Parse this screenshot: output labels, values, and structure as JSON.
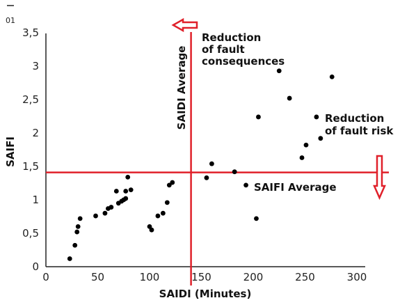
{
  "figure_number": "01",
  "chart_data": {
    "type": "scatter",
    "title": "",
    "xlabel": "SAIDI (Minutes)",
    "ylabel": "SAIFI",
    "xlim": [
      0,
      300
    ],
    "ylim": [
      0,
      3.5
    ],
    "x_ticks": [
      "0",
      "50",
      "100",
      "150",
      "200",
      "250",
      "300"
    ],
    "y_ticks": [
      "0",
      "0,5",
      "1",
      "1,5",
      "2",
      "2,5",
      "3",
      "3,5"
    ],
    "x_tick_values": [
      0,
      50,
      100,
      150,
      200,
      250,
      300
    ],
    "y_tick_values": [
      0,
      0.5,
      1,
      1.5,
      2,
      2.5,
      3,
      3.5
    ],
    "grid": false,
    "series": [
      {
        "points": [
          [
            23,
            0.12
          ],
          [
            28,
            0.32
          ],
          [
            30,
            0.52
          ],
          [
            31,
            0.6
          ],
          [
            33,
            0.72
          ],
          [
            48,
            0.76
          ],
          [
            57,
            0.8
          ],
          [
            60,
            0.87
          ],
          [
            63,
            0.89
          ],
          [
            68,
            1.13
          ],
          [
            70,
            0.95
          ],
          [
            73,
            0.98
          ],
          [
            75,
            1.0
          ],
          [
            77,
            1.13
          ],
          [
            77,
            1.02
          ],
          [
            79,
            1.34
          ],
          [
            82,
            1.15
          ],
          [
            100,
            0.6
          ],
          [
            102,
            0.55
          ],
          [
            108,
            0.76
          ],
          [
            113,
            0.8
          ],
          [
            117,
            0.96
          ],
          [
            119,
            1.22
          ],
          [
            122,
            1.26
          ],
          [
            155,
            1.33
          ],
          [
            160,
            1.54
          ],
          [
            182,
            1.42
          ],
          [
            193,
            1.22
          ],
          [
            203,
            0.72
          ],
          [
            205,
            2.24
          ],
          [
            225,
            2.93
          ],
          [
            235,
            2.52
          ],
          [
            247,
            1.63
          ],
          [
            251,
            1.82
          ],
          [
            261,
            2.24
          ],
          [
            265,
            1.92
          ],
          [
            276,
            2.84
          ]
        ]
      }
    ],
    "reference_lines": {
      "saidi_average": 140,
      "saifi_average": 1.41
    },
    "annotations": {
      "saidi_average_label": "SAIDI Average",
      "saifi_average_label": "SAIFI Average",
      "reduction_consequences_line1": "Reduction",
      "reduction_consequences_line2": "of fault",
      "reduction_consequences_line3": "consequences",
      "reduction_risk_line1": "Reduction",
      "reduction_risk_line2": "of fault risk"
    },
    "colors": {
      "points": "#000000",
      "reference_lines": "#e0202a",
      "axes": "#222222"
    }
  }
}
